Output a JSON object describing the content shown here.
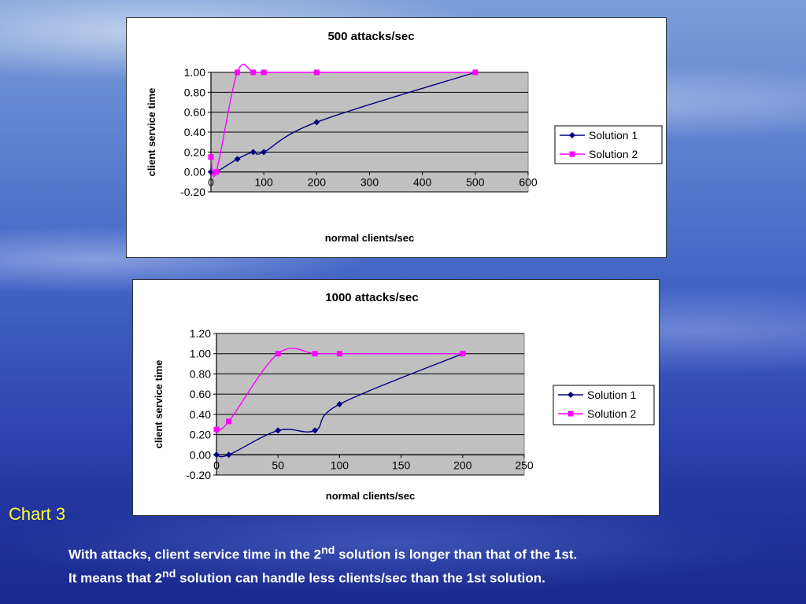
{
  "slide": {
    "caption": "Chart 3",
    "line1": {
      "before": "With attacks, client service time in the 2",
      "sup": "nd",
      "after": "  solution is longer than that of the 1st."
    },
    "line2": {
      "before": "It means that 2",
      "sup": "nd",
      "after": " solution can handle less clients/sec than the 1st solution."
    }
  },
  "colors": {
    "solution1": "#000080",
    "solution2": "#ff00ff",
    "plot_area": "#c0c0c0",
    "caption": "#ffff33"
  },
  "chart_data": [
    {
      "type": "line",
      "title": "500  attacks/sec",
      "xlabel": "normal clients/sec",
      "ylabel": "client service time",
      "xlim": [
        0,
        600
      ],
      "ylim": [
        -0.2,
        1.0
      ],
      "xticks": [
        "0",
        "100",
        "200",
        "300",
        "400",
        "500",
        "600"
      ],
      "yticks": [
        "-0.20",
        "0.00",
        "0.20",
        "0.40",
        "0.60",
        "0.80",
        "1.00"
      ],
      "grid": true,
      "legend": "right",
      "series": [
        {
          "name": "Solution 1",
          "marker": "diamond",
          "points": [
            [
              0,
              0
            ],
            [
              10,
              0
            ],
            [
              50,
              0.13
            ],
            [
              80,
              0.2
            ],
            [
              100,
              0.2
            ],
            [
              200,
              0.5
            ],
            [
              500,
              1.0
            ]
          ]
        },
        {
          "name": "Solution 2",
          "marker": "square",
          "points": [
            [
              0,
              0.15
            ],
            [
              10,
              0
            ],
            [
              50,
              1.0
            ],
            [
              80,
              1.0
            ],
            [
              100,
              1.0
            ],
            [
              200,
              1.0
            ],
            [
              500,
              1.0
            ]
          ]
        }
      ]
    },
    {
      "type": "line",
      "title": "1000   attacks/sec",
      "xlabel": "normal clients/sec",
      "ylabel": "client service time",
      "xlim": [
        0,
        250
      ],
      "ylim": [
        -0.2,
        1.2
      ],
      "xticks": [
        "0",
        "50",
        "100",
        "150",
        "200",
        "250"
      ],
      "yticks": [
        "-0.20",
        "0.00",
        "0.20",
        "0.40",
        "0.60",
        "0.80",
        "1.00",
        "1.20"
      ],
      "grid": true,
      "legend": "right",
      "series": [
        {
          "name": "Solution 1",
          "marker": "diamond",
          "points": [
            [
              0,
              0
            ],
            [
              10,
              0
            ],
            [
              50,
              0.24
            ],
            [
              80,
              0.24
            ],
            [
              100,
              0.5
            ],
            [
              200,
              1.0
            ]
          ]
        },
        {
          "name": "Solution 2",
          "marker": "square",
          "points": [
            [
              0,
              0.25
            ],
            [
              10,
              0.33
            ],
            [
              50,
              1.0
            ],
            [
              80,
              1.0
            ],
            [
              100,
              1.0
            ],
            [
              200,
              1.0
            ]
          ]
        }
      ]
    }
  ]
}
